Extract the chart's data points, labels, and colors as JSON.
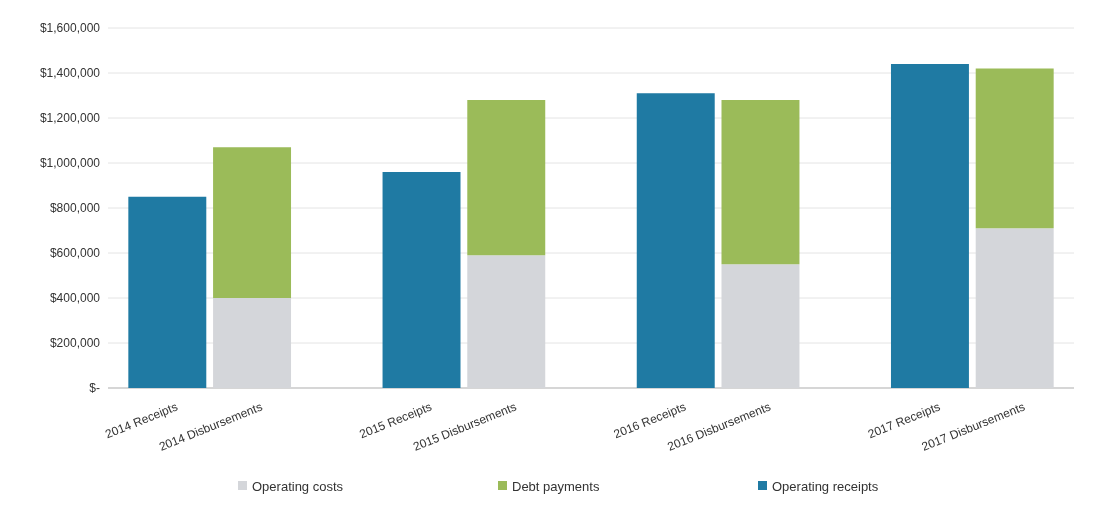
{
  "chart_data": {
    "type": "bar",
    "stacked": true,
    "categories": [
      "2014 Receipts",
      "2014 Disbursements",
      "2015 Receipts",
      "2015 Disbursements",
      "2016 Receipts",
      "2016 Disbursements",
      "2017 Receipts",
      "2017 Disbursements"
    ],
    "series": [
      {
        "name": "Operating costs",
        "color": "#d4d6da",
        "values": [
          null,
          400000,
          null,
          590000,
          null,
          550000,
          null,
          710000
        ]
      },
      {
        "name": "Debt payments",
        "color": "#9bbb59",
        "values": [
          null,
          670000,
          null,
          690000,
          null,
          730000,
          null,
          710000
        ]
      },
      {
        "name": "Operating receipts",
        "color": "#1f7aa3",
        "values": [
          850000,
          null,
          960000,
          null,
          1310000,
          null,
          1440000,
          null
        ]
      }
    ],
    "ylim": [
      0,
      1600000
    ],
    "yticks": [
      {
        "value": 0,
        "label": "$-"
      },
      {
        "value": 200000,
        "label": "$200,000"
      },
      {
        "value": 400000,
        "label": "$400,000"
      },
      {
        "value": 600000,
        "label": "$600,000"
      },
      {
        "value": 800000,
        "label": "$800,000"
      },
      {
        "value": 1000000,
        "label": "$1,000,000"
      },
      {
        "value": 1200000,
        "label": "$1,200,000"
      },
      {
        "value": 1400000,
        "label": "$1,400,000"
      },
      {
        "value": 1600000,
        "label": "$1,600,000"
      }
    ],
    "grid": "y",
    "legend": "bottom"
  }
}
